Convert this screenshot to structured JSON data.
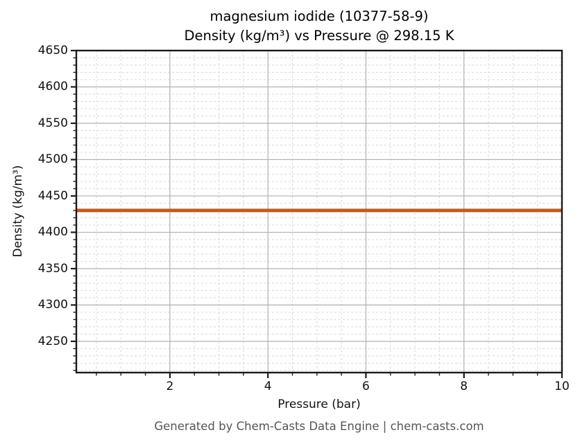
{
  "figure": {
    "title_line1": "magnesium iodide (10377-58-9)",
    "title_line2": "Density (kg/m³) vs Pressure @ 298.15 K",
    "footer": "Generated by Chem-Casts Data Engine | chem-casts.com"
  },
  "chart_data": {
    "type": "line",
    "title": "magnesium iodide (10377-58-9)\nDensity (kg/m³) vs Pressure @ 298.15 K",
    "xlabel": "Pressure (bar)",
    "ylabel": "Density (kg/m³)",
    "xlim": [
      0.09,
      10
    ],
    "ylim": [
      4207,
      4650
    ],
    "x_major_ticks": [
      2,
      4,
      6,
      8,
      10
    ],
    "x_minor_step": 0.5,
    "y_major_ticks": [
      4250,
      4300,
      4350,
      4400,
      4450,
      4500,
      4550,
      4600,
      4650
    ],
    "y_minor_step": 10,
    "grid": {
      "major_on": true,
      "minor_on": true,
      "major_color": "#b0b0b0",
      "minor_color": "#d9d9d9"
    },
    "legend": "none",
    "series": [
      {
        "name": "Density",
        "x": [
          0.1,
          10
        ],
        "y": [
          4430,
          4430
        ],
        "constant_value": 4430,
        "color": "#d2521e",
        "line_width": 5
      }
    ],
    "axis_color": "#1a1a1a",
    "background_color": "#ffffff"
  }
}
